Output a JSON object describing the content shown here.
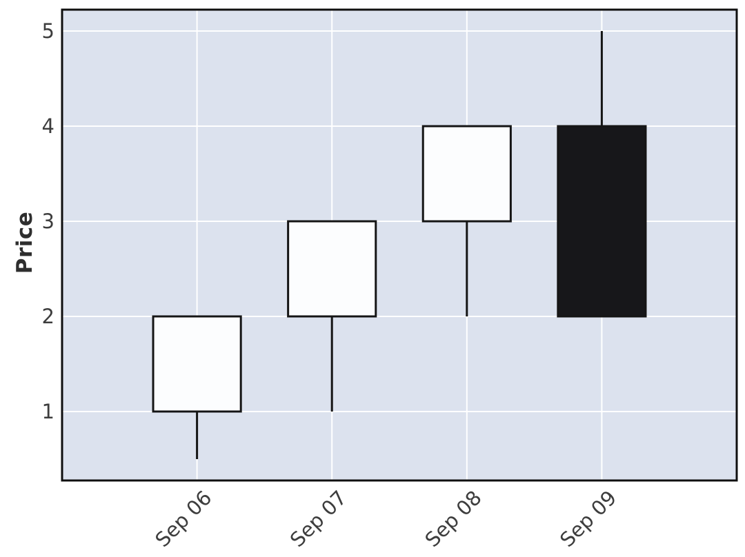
{
  "chart_data": {
    "type": "candlestick",
    "title": "",
    "xlabel": "",
    "ylabel": "Price",
    "categories": [
      "Sep 06",
      "Sep 07",
      "Sep 08",
      "Sep 09"
    ],
    "series": [
      {
        "name": "ohlc",
        "points": [
          {
            "date": "Sep 06",
            "open": 1,
            "high": 2,
            "low": 0.5,
            "close": 2
          },
          {
            "date": "Sep 07",
            "open": 2,
            "high": 3,
            "low": 1,
            "close": 3
          },
          {
            "date": "Sep 08",
            "open": 3,
            "high": 4,
            "low": 2,
            "close": 4
          },
          {
            "date": "Sep 09",
            "open": 4,
            "high": 5,
            "low": 2,
            "close": 2
          }
        ]
      }
    ],
    "y_ticks": [
      1,
      2,
      3,
      4,
      5
    ],
    "ylim": [
      0.275,
      5.225
    ],
    "xlim": [
      -1,
      4
    ],
    "grid": true,
    "legend_position": "none",
    "x_tick_rotation_deg": 45,
    "candle_width_units": 0.65,
    "colors": {
      "plot_background": "#dce2ee",
      "gridline": "#ffffff",
      "up_candle_fill": "#fcfdfe",
      "down_candle_fill": "#17171a",
      "candle_stroke": "#151515",
      "wick": "#151515",
      "axis_frame": "#0f0f0f",
      "tick_label": "#3d3d3d",
      "axis_label": "#2e2e2e",
      "page_background": "#ffffff"
    }
  }
}
